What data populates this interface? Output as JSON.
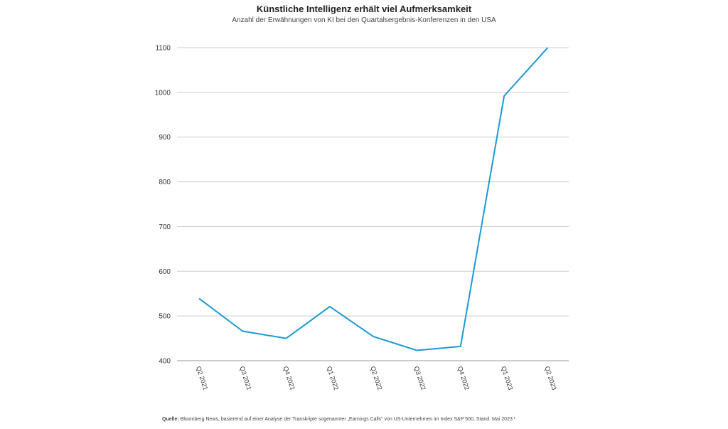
{
  "chart_data": {
    "type": "line",
    "title": "Künstliche Intelligenz erhält viel Aufmerksamkeit",
    "subtitle": "Anzahl der Erwähnungen von KI bei den Quartalsergebnis-Konferenzen in den USA",
    "xlabel": "",
    "ylabel": "",
    "categories": [
      "Q2 2021",
      "Q3 2021",
      "Q4 2021",
      "Q1 2022",
      "Q2 2022",
      "Q3 2022",
      "Q4 2022",
      "Q1 2023",
      "Q2 2023"
    ],
    "series": [
      {
        "values": [
          539,
          466,
          450,
          521,
          454,
          423,
          432,
          992,
          1100
        ]
      }
    ],
    "ylim": [
      400,
      1100
    ],
    "yticks": [
      400,
      500,
      600,
      700,
      800,
      900,
      1000,
      1100
    ],
    "grid": true,
    "colors": {
      "line": "#1a9ad6",
      "grid": "#cccccc",
      "axis": "#999999"
    }
  },
  "source": {
    "label": "Quelle:",
    "text": " Bloomberg News, basierend auf einer Analyse der Transkripte sogenannter „Earnings Calls“ von US-Unternehmen im Index S&P 500, Stand: Mai 2023 ¹"
  }
}
